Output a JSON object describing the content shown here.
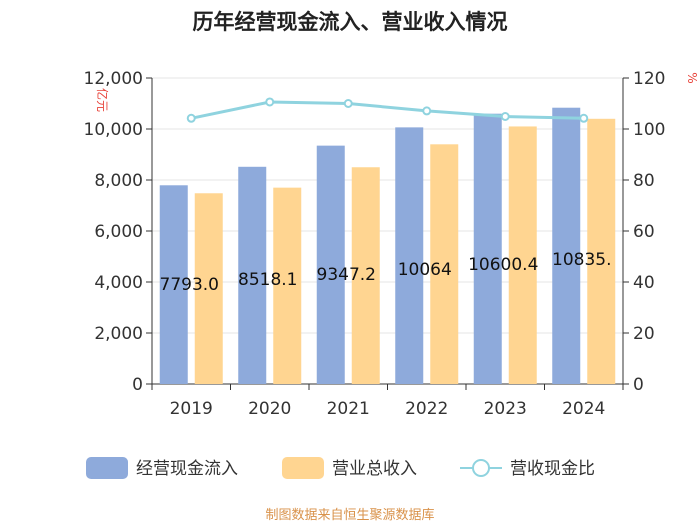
{
  "chart_data": {
    "type": "bar",
    "title": "历年经营现金流入、营业收入情况",
    "categories": [
      "2019",
      "2020",
      "2021",
      "2022",
      "2023",
      "2024"
    ],
    "series": [
      {
        "name": "经营现金流入",
        "type": "bar",
        "axis": "left",
        "color": "#8eaadb",
        "values": [
          7793.0,
          8518.1,
          9347.2,
          10064.0,
          10600.4,
          10835.0
        ],
        "labels": [
          "7793.0",
          "8518.1",
          "9347.2",
          "10064",
          "10600.4",
          "10835."
        ]
      },
      {
        "name": "营业总收入",
        "type": "bar",
        "axis": "left",
        "color": "#ffd591",
        "values": [
          7480,
          7700,
          8500,
          9400,
          10100,
          10400
        ]
      },
      {
        "name": "营收现金比",
        "type": "line",
        "axis": "right",
        "color": "#8fd3df",
        "values": [
          104.2,
          110.6,
          110.0,
          107.1,
          104.9,
          104.2
        ]
      }
    ],
    "y_left": {
      "unit": "亿元",
      "min": 0,
      "max": 12000,
      "ticks": [
        "0",
        "2,000",
        "4,000",
        "6,000",
        "8,000",
        "10,000",
        "12,000"
      ]
    },
    "y_right": {
      "unit": "%",
      "min": 0,
      "max": 120,
      "ticks": [
        "0",
        "20",
        "40",
        "60",
        "80",
        "100",
        "120"
      ]
    },
    "legend_position": "bottom",
    "source": "制图数据来自恒生聚源数据库"
  }
}
